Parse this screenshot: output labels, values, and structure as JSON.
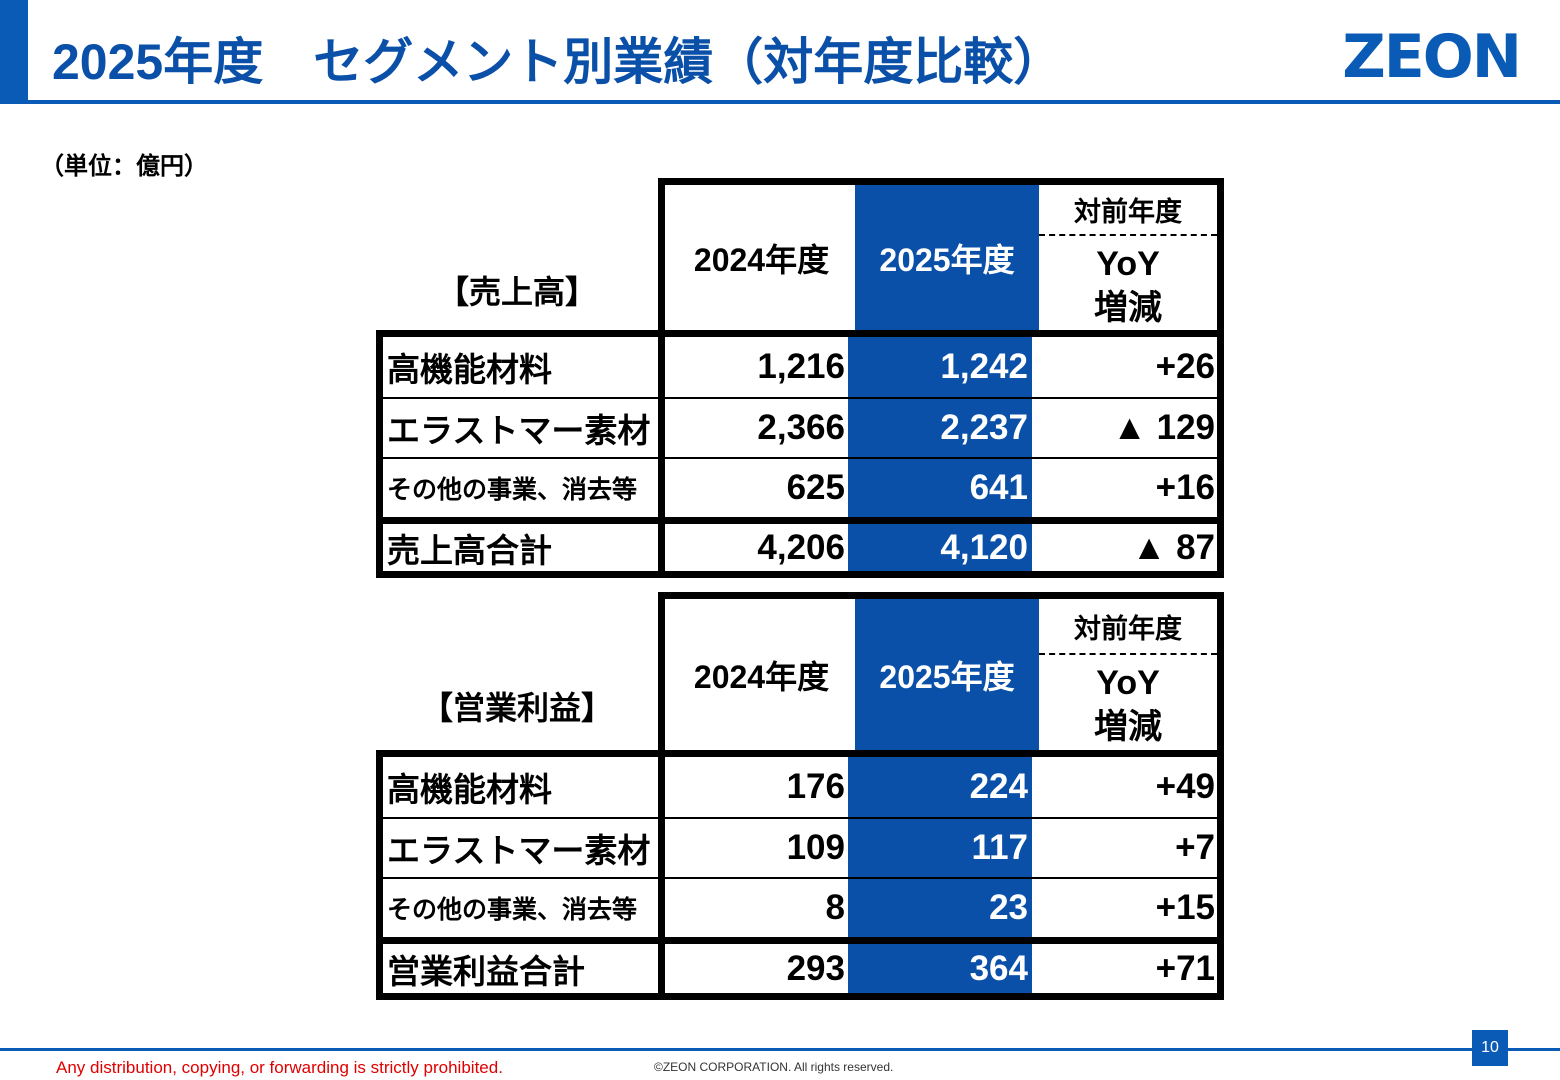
{
  "header": {
    "title": "2025年度　セグメント別業績（対年度比較）",
    "logo": "ZEON",
    "accent_color": "#0a5bb5"
  },
  "unit_label": "（単位：億円）",
  "columns": {
    "prev": "2024年度",
    "curr": "2025年度",
    "yoy_top": "対前年度",
    "yoy_bottom_1": "YoY",
    "yoy_bottom_2": "増減"
  },
  "sales": {
    "label": "【売上高】",
    "rows": [
      {
        "name": "高機能材料",
        "prev": "1,216",
        "curr": "1,242",
        "yoy": "+26"
      },
      {
        "name": "エラストマー素材",
        "prev": "2,366",
        "curr": "2,237",
        "yoy": "▲ 129"
      },
      {
        "name": "その他の事業、消去等",
        "prev": "625",
        "curr": "641",
        "yoy": "+16"
      }
    ],
    "total": {
      "name": "売上高合計",
      "prev": "4,206",
      "curr": "4,120",
      "yoy": "▲ 87"
    }
  },
  "profit": {
    "label": "【営業利益】",
    "rows": [
      {
        "name": "高機能材料",
        "prev": "176",
        "curr": "224",
        "yoy": "+49"
      },
      {
        "name": "エラストマー素材",
        "prev": "109",
        "curr": "117",
        "yoy": "+7"
      },
      {
        "name": "その他の事業、消去等",
        "prev": "8",
        "curr": "23",
        "yoy": "+15"
      }
    ],
    "total": {
      "name": "営業利益合計",
      "prev": "293",
      "curr": "364",
      "yoy": "+71"
    }
  },
  "footer": {
    "disclaimer": "Any distribution, copying, or forwarding is strictly prohibited.",
    "copyright": "©ZEON CORPORATION. All rights reserved.",
    "page_number": "10"
  }
}
